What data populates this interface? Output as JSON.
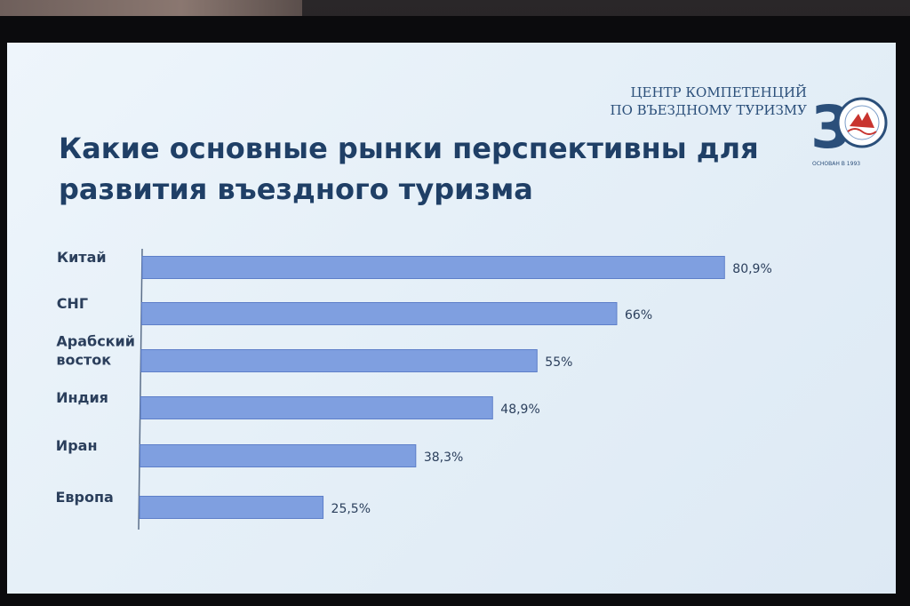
{
  "slide": {
    "title": "Какие основные рынки перспективны для развития въездного туризма"
  },
  "logo": {
    "line1": "ЦЕНТР КОМПЕТЕНЦИЙ",
    "line2": "ПО ВЪЕЗДНОМУ ТУРИЗМУ",
    "badge_number": "3",
    "founded": "ОСНОВАН В 1993"
  },
  "colors": {
    "title": "#1f3f66",
    "bar_fill": "#7f9fe0",
    "bar_stroke": "#5e7fc9",
    "label": "#2b3f5c",
    "axis": "#5c6f8a"
  },
  "chart_data": {
    "type": "bar",
    "orientation": "horizontal",
    "title": "Какие основные рынки перспективны для развития въездного туризма",
    "categories": [
      [
        "Китай"
      ],
      [
        "СНГ"
      ],
      [
        "Арабский",
        "восток"
      ],
      [
        "Индия"
      ],
      [
        "Иран"
      ],
      [
        "Европа"
      ]
    ],
    "values": [
      80.9,
      66,
      55,
      48.9,
      38.3,
      25.5
    ],
    "value_labels": [
      "80,9%",
      "66%",
      "55%",
      "48,9%",
      "38,3%",
      "25,5%"
    ],
    "xlim": [
      0,
      100
    ],
    "grid": false,
    "legend": false
  }
}
